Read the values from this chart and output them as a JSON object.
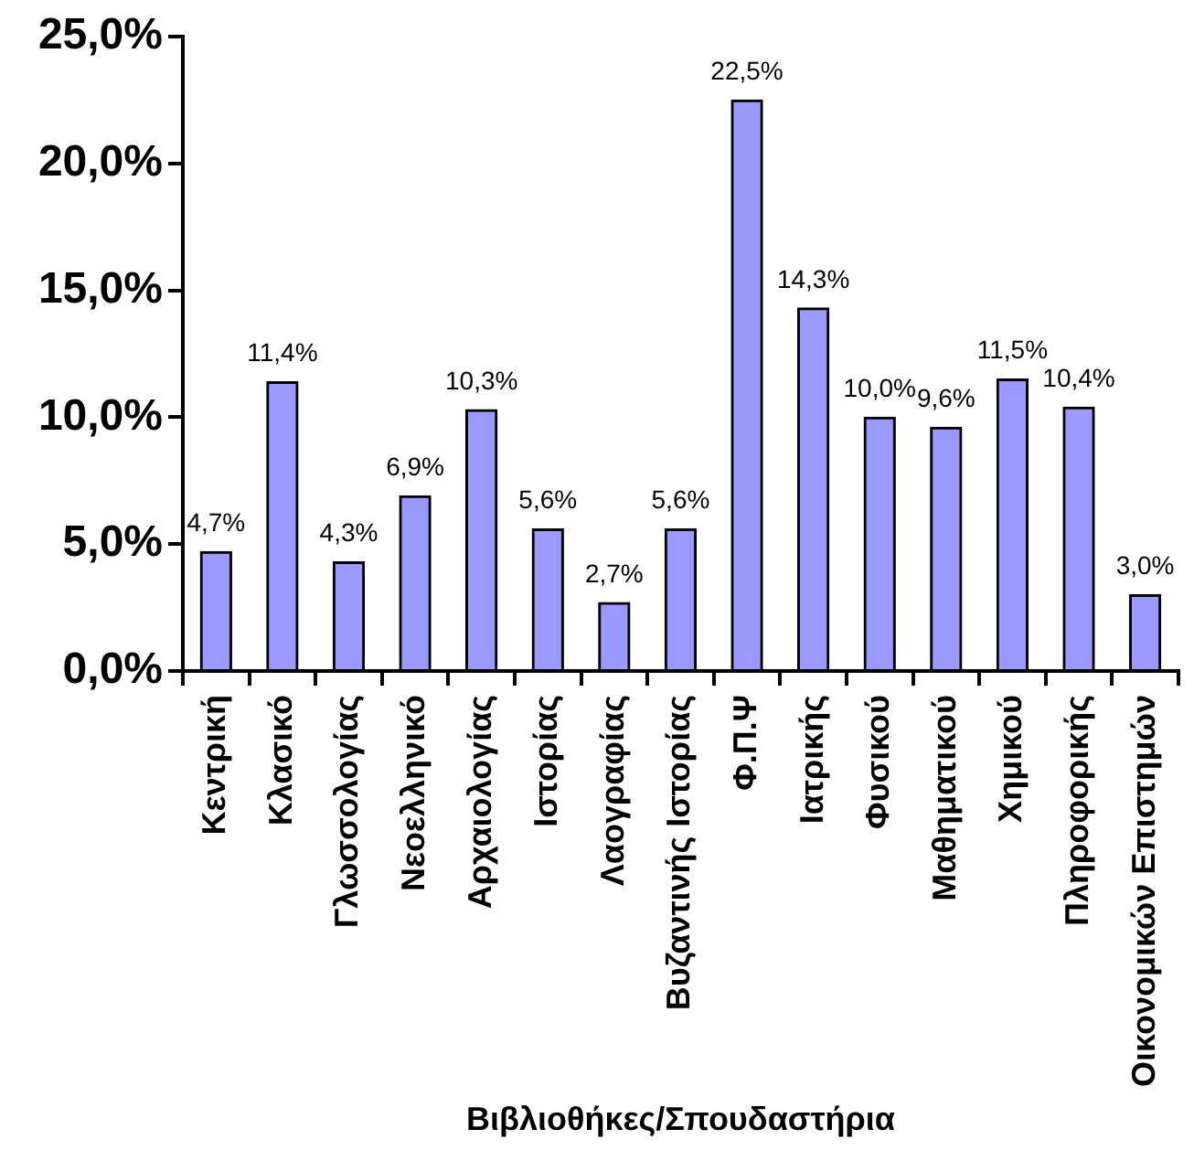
{
  "chart_data": {
    "type": "bar",
    "xlabel": "Βιβλιοθήκες/Σπουδαστήρια",
    "categories": [
      "Κεντρική",
      "Κλασικό",
      "Γλωσσολογίας",
      "Νεοελληνικό",
      "Αρχαιολογίας",
      "Ιστορίας",
      "Λαογραφίας",
      "Βυζαντινής Ιστορίας",
      "Φ.Π.Ψ",
      "Ιατρικής",
      "Φυσικού",
      "Μαθηματικού",
      "Χημικού",
      "Πληροφορικής",
      "Οικονομικών Επιστημών"
    ],
    "values": [
      4.7,
      11.4,
      4.3,
      6.9,
      10.3,
      5.6,
      2.7,
      5.6,
      22.5,
      14.3,
      10.0,
      9.6,
      11.5,
      10.4,
      3.0
    ],
    "value_labels": [
      "4,7%",
      "11,4%",
      "4,3%",
      "6,9%",
      "10,3%",
      "5,6%",
      "2,7%",
      "5,6%",
      "22,5%",
      "14,3%",
      "10,0%",
      "9,6%",
      "11,5%",
      "10,4%",
      "3,0%"
    ],
    "color": "#9999ff",
    "ylim": [
      0,
      25
    ],
    "yticks": [
      {
        "value": 0,
        "label": "0,0%"
      },
      {
        "value": 5,
        "label": "5,0%"
      },
      {
        "value": 10,
        "label": "10,0%"
      },
      {
        "value": 15,
        "label": "15,0%"
      },
      {
        "value": 20,
        "label": "20,0%"
      },
      {
        "value": 25,
        "label": "25,0%"
      }
    ],
    "grid": false,
    "legend": false
  }
}
